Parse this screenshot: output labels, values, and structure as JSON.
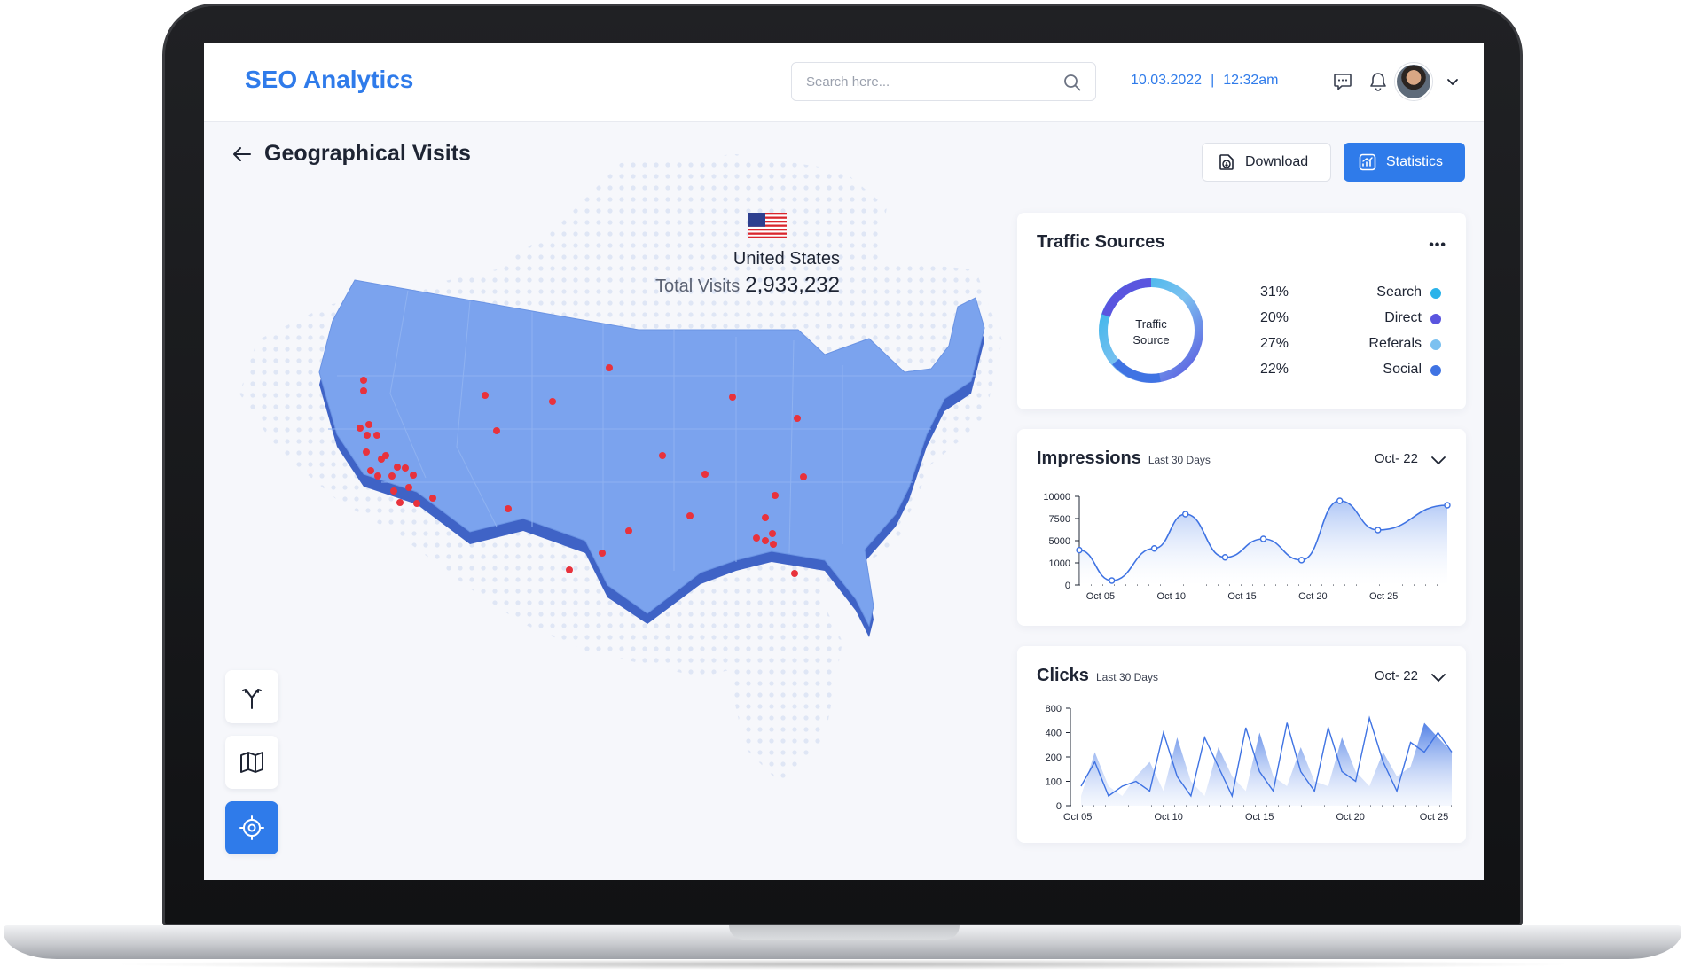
{
  "app": {
    "title": "SEO Analytics"
  },
  "header": {
    "search_placeholder": "Search here...",
    "date": "10.03.2022",
    "separator": "|",
    "time": "12:32am"
  },
  "page": {
    "title": "Geographical Visits"
  },
  "actions": {
    "download_label": "Download",
    "statistics_label": "Statistics"
  },
  "map": {
    "country": "United States",
    "total_visits_label": "Total Visits",
    "total_visits_value": "2,933,232",
    "colors": {
      "land": "#7ba3ee",
      "land_shadow": "#3f63c6",
      "marker": "#e8323c"
    }
  },
  "traffic_sources": {
    "title": "Traffic Sources",
    "more_label": "•••",
    "center_label_1": "Traffic",
    "center_label_2": "Source",
    "items": [
      {
        "pct": "31%",
        "label": "Search",
        "color": "#2bb3ea"
      },
      {
        "pct": "20%",
        "label": "Direct",
        "color": "#5a55df"
      },
      {
        "pct": "27%",
        "label": "Referals",
        "color": "#7cc1f0"
      },
      {
        "pct": "22%",
        "label": "Social",
        "color": "#3f73e3"
      }
    ]
  },
  "impressions": {
    "title": "Impressions",
    "subtitle": "Last 30 Days",
    "month": "Oct- 22",
    "chart_data": {
      "type": "area",
      "title": "Impressions",
      "x": [
        1,
        4,
        8,
        10,
        13,
        16,
        19,
        22,
        25,
        28,
        31
      ],
      "xticks": [
        "Oct 05",
        "Oct 10",
        "Oct 15",
        "Oct 20",
        "Oct 25"
      ],
      "xtick_positions": [
        5,
        10,
        15,
        20,
        25
      ],
      "xlim": [
        3.5,
        29.5
      ],
      "yticks": [
        0,
        1000,
        5000,
        7500,
        10000
      ],
      "series": [
        {
          "points": [
            [
              3.5,
              3300
            ],
            [
              5.8,
              200
            ],
            [
              8.8,
              3600
            ],
            [
              11,
              8000
            ],
            [
              13.8,
              2000
            ],
            [
              16.5,
              5200
            ],
            [
              19.2,
              1500
            ],
            [
              21.9,
              9500
            ],
            [
              24.6,
              6200
            ],
            [
              29.5,
              9000
            ]
          ]
        }
      ],
      "color": "#3f73e3"
    }
  },
  "clicks": {
    "title": "Clicks",
    "subtitle": "Last 30 Days",
    "month": "Oct- 22",
    "chart_data": {
      "type": "area",
      "title": "Clicks",
      "xticks": [
        "Oct 05",
        "Oct 10",
        "Oct 15",
        "Oct 20",
        "Oct 25"
      ],
      "yticks": [
        0,
        100,
        200,
        400,
        800
      ],
      "series": [
        {
          "name": "line",
          "values": [
            0.2,
            0.45,
            0.1,
            0.2,
            0.25,
            0.15,
            0.75,
            0.3,
            0.1,
            0.7,
            0.4,
            0.1,
            0.8,
            0.35,
            0.15,
            0.85,
            0.35,
            0.15,
            0.8,
            0.35,
            0.25,
            0.9,
            0.45,
            0.15,
            0.65,
            0.55,
            0.75,
            0.55
          ]
        },
        {
          "name": "area",
          "values": [
            0.1,
            0.55,
            0.2,
            0.1,
            0.3,
            0.45,
            0.15,
            0.7,
            0.25,
            0.1,
            0.6,
            0.3,
            0.15,
            0.75,
            0.3,
            0.2,
            0.6,
            0.25,
            0.2,
            0.7,
            0.35,
            0.2,
            0.55,
            0.3,
            0.4,
            0.85,
            0.7,
            0.55
          ]
        }
      ],
      "color": "#3f73e3"
    }
  }
}
